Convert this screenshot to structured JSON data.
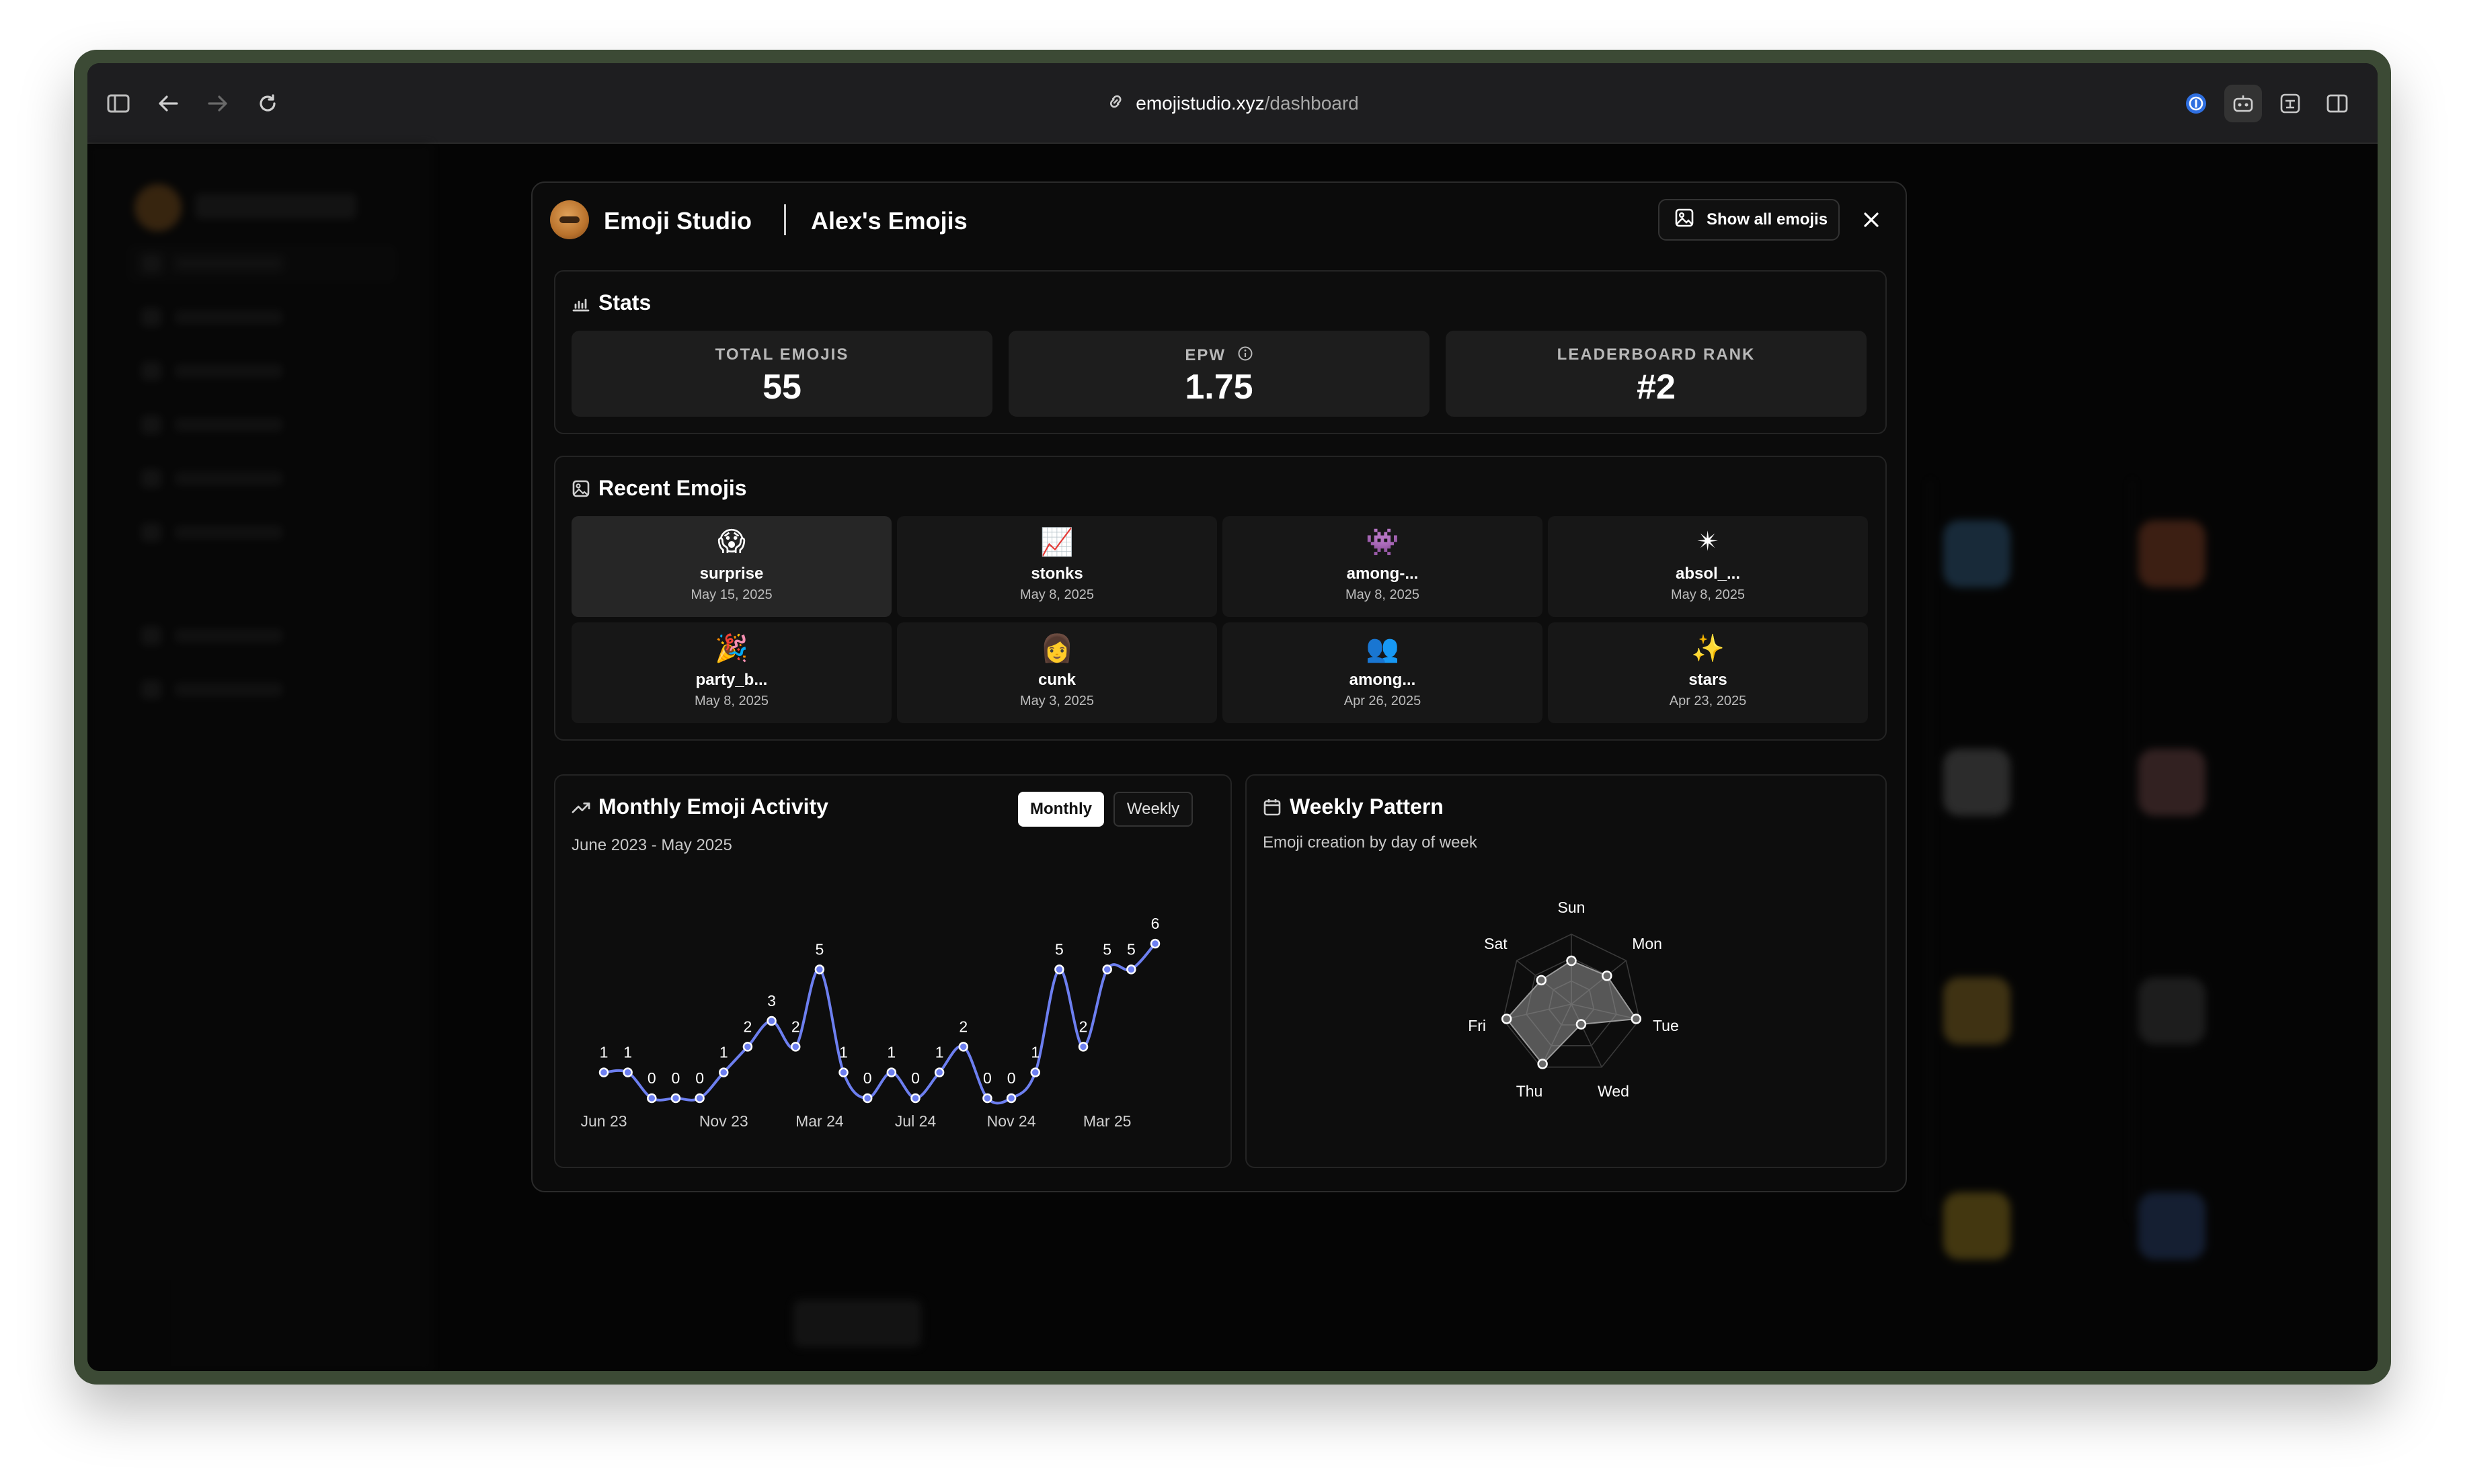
{
  "browser": {
    "url_host": "emojistudio.xyz",
    "url_path": "/dashboard"
  },
  "modal": {
    "brand": "Emoji Studio",
    "title": "Alex's Emojis",
    "show_all_label": "Show all emojis"
  },
  "stats": {
    "title": "Stats",
    "items": [
      {
        "label": "TOTAL EMOJIS",
        "value": "55"
      },
      {
        "label": "EPW",
        "value": "1.75"
      },
      {
        "label": "LEADERBOARD RANK",
        "value": "#2"
      }
    ]
  },
  "recent": {
    "title": "Recent Emojis",
    "items": [
      {
        "name": "surprise",
        "date": "May 15, 2025",
        "glyph": "😱"
      },
      {
        "name": "stonks",
        "date": "May 8, 2025",
        "glyph": "📈"
      },
      {
        "name": "among-...",
        "date": "May 8, 2025",
        "glyph": "👾"
      },
      {
        "name": "absol_...",
        "date": "May 8, 2025",
        "glyph": "✴"
      },
      {
        "name": "party_b...",
        "date": "May 8, 2025",
        "glyph": "🎉"
      },
      {
        "name": "cunk",
        "date": "May 3, 2025",
        "glyph": "👩"
      },
      {
        "name": "among...",
        "date": "Apr 26, 2025",
        "glyph": "👥"
      },
      {
        "name": "stars",
        "date": "Apr 23, 2025",
        "glyph": "✨"
      }
    ]
  },
  "activity": {
    "title": "Monthly Emoji Activity",
    "range": "June 2023 - May 2025",
    "toggle_monthly": "Monthly",
    "toggle_weekly": "Weekly"
  },
  "weekly": {
    "title": "Weekly Pattern",
    "subtitle": "Emoji creation by day of week"
  },
  "chart_data": [
    {
      "type": "line",
      "title": "Monthly Emoji Activity",
      "x_tick_labels": [
        "Jun 23",
        "Nov 23",
        "Mar 24",
        "Jul 24",
        "Nov 24",
        "Mar 25"
      ],
      "x": [
        "Jun 23",
        "Jul 23",
        "Aug 23",
        "Sep 23",
        "Oct 23",
        "Nov 23",
        "Dec 23",
        "Jan 24",
        "Feb 24",
        "Mar 24",
        "Apr 24",
        "May 24",
        "Jun 24",
        "Jul 24",
        "Aug 24",
        "Sep 24",
        "Oct 24",
        "Nov 24",
        "Dec 24",
        "Jan 25",
        "Feb 25",
        "Mar 25",
        "Apr 25",
        "May 25"
      ],
      "values": [
        1,
        1,
        0,
        0,
        0,
        1,
        2,
        3,
        2,
        5,
        1,
        0,
        1,
        0,
        1,
        2,
        0,
        0,
        1,
        5,
        2,
        5,
        5,
        6
      ],
      "color": "#6d7ff0",
      "ylim": [
        0,
        6
      ]
    },
    {
      "type": "radar",
      "title": "Weekly Pattern",
      "categories": [
        "Sun",
        "Mon",
        "Tue",
        "Wed",
        "Thu",
        "Fri",
        "Sat"
      ],
      "values": [
        0.62,
        0.65,
        0.95,
        0.32,
        0.95,
        0.95,
        0.55
      ],
      "max": 1
    }
  ]
}
